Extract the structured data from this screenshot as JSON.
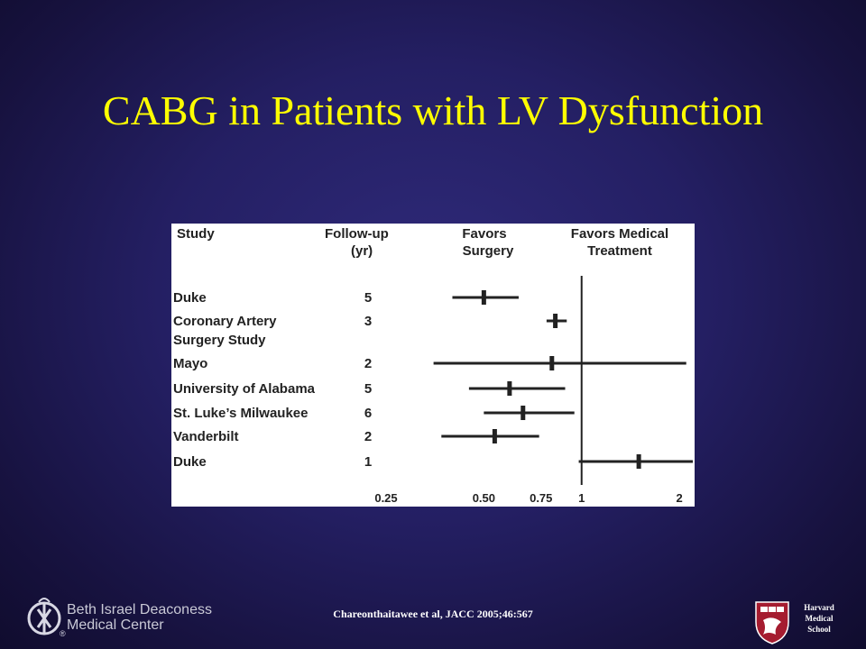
{
  "slide": {
    "title": "CABG in Patients with LV Dysfunction",
    "citation": "Chareonthaitawee et al, JACC 2005;46:567"
  },
  "logos": {
    "bidmc_line1": "Beth Israel Deaconess",
    "bidmc_line2": "Medical Center",
    "bidmc_mark": "®",
    "harvard_line1": "Harvard",
    "harvard_line2": "Medical",
    "harvard_line3": "School"
  },
  "colors": {
    "background": "#241f63",
    "title": "#ffff00",
    "chart_ink": "#222222"
  },
  "chart_data": {
    "type": "forest",
    "columns": {
      "study": "Study",
      "followup_line1": "Follow-up",
      "followup_line2": "(yr)",
      "favors_surgery_line1": "Favors",
      "favors_surgery_line2": "Surgery",
      "favors_medical_line1": "Favors Medical",
      "favors_medical_line2": "Treatment"
    },
    "x_scale": "log",
    "xlim": [
      0.25,
      2.2
    ],
    "reference_line": 1,
    "x_ticks": [
      {
        "value": 0.25,
        "label": "0.25"
      },
      {
        "value": 0.5,
        "label": "0.50"
      },
      {
        "value": 0.75,
        "label": "0.75"
      },
      {
        "value": 1,
        "label": "1"
      },
      {
        "value": 2,
        "label": "2"
      }
    ],
    "rows": [
      {
        "study": [
          "Duke"
        ],
        "followup": "5",
        "estimate": 0.5,
        "lower": 0.4,
        "upper": 0.64
      },
      {
        "study": [
          "Coronary Artery",
          "Surgery Study"
        ],
        "followup": "3",
        "estimate": 0.83,
        "lower": 0.78,
        "upper": 0.9
      },
      {
        "study": [
          "Mayo"
        ],
        "followup": "2",
        "estimate": 0.81,
        "lower": 0.35,
        "upper": 2.1
      },
      {
        "study": [
          "University of Alabama"
        ],
        "followup": "5",
        "estimate": 0.6,
        "lower": 0.45,
        "upper": 0.89
      },
      {
        "study": [
          "St. Luke’s Milwaukee"
        ],
        "followup": "6",
        "estimate": 0.66,
        "lower": 0.5,
        "upper": 0.95
      },
      {
        "study": [
          "Vanderbilt"
        ],
        "followup": "2",
        "estimate": 0.54,
        "lower": 0.37,
        "upper": 0.74
      },
      {
        "study": [
          "Duke"
        ],
        "followup": "1",
        "estimate": 1.5,
        "lower": 0.98,
        "upper": 2.2
      }
    ]
  }
}
